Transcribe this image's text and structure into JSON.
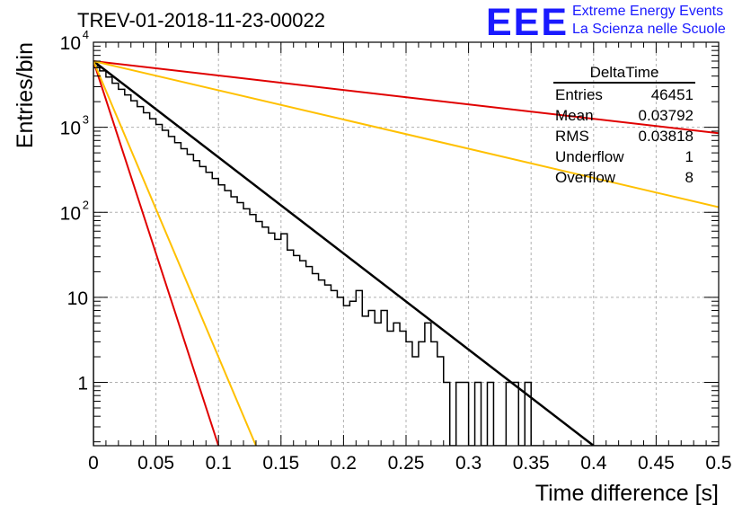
{
  "header": {
    "title": "TREV-01-2018-11-23-00022",
    "logo_text": "EEE",
    "logo_line1": "Extreme Energy Events",
    "logo_line2": "La Scienza nelle Scuole"
  },
  "stats_box": {
    "title": "DeltaTime",
    "rows": [
      {
        "label": "Entries",
        "value": "46451"
      },
      {
        "label": "Mean",
        "value": "0.03792"
      },
      {
        "label": "RMS",
        "value": "0.03818"
      },
      {
        "label": "Underflow",
        "value": "1"
      },
      {
        "label": "Overflow",
        "value": "8"
      }
    ]
  },
  "colors": {
    "histogram": "#000000",
    "fit": "#000000",
    "red_lines": "#e00000",
    "yellow_lines": "#ffc000",
    "grid": "#b0b0b0",
    "logo": "#1a1aff"
  },
  "chart_data": {
    "type": "line",
    "title": "TREV-01-2018-11-23-00022",
    "xlabel": "Time difference [s]",
    "ylabel": "Entries/bin",
    "xlim": [
      0,
      0.5
    ],
    "ylim": [
      0.18,
      10000
    ],
    "yscale": "log",
    "grid": true,
    "x_ticks": [
      "0",
      "0.05",
      "0.1",
      "0.15",
      "0.2",
      "0.25",
      "0.3",
      "0.35",
      "0.4",
      "0.45",
      "0.5"
    ],
    "y_ticks": [
      {
        "value": 1,
        "label": "1"
      },
      {
        "value": 10,
        "label": "10"
      },
      {
        "value": 100,
        "label": "10",
        "exp": "2"
      },
      {
        "value": 1000,
        "label": "10",
        "exp": "3"
      },
      {
        "value": 10000,
        "label": "10",
        "exp": "4"
      }
    ],
    "histogram": {
      "name": "DeltaTime",
      "bin_width": 0.005,
      "values": [
        5200,
        4600,
        3900,
        3300,
        2800,
        2400,
        2050,
        1750,
        1480,
        1260,
        1080,
        920,
        780,
        660,
        560,
        480,
        405,
        345,
        295,
        250,
        210,
        180,
        152,
        130,
        110,
        94,
        78,
        67,
        57,
        48,
        56,
        36,
        31,
        27,
        23,
        19,
        16,
        14,
        12,
        10,
        8,
        9,
        12,
        6,
        7,
        5,
        7,
        4,
        5,
        4,
        3,
        2,
        3,
        5,
        3,
        2,
        1,
        0,
        1,
        1,
        0,
        1,
        0,
        1,
        0,
        0,
        1,
        1,
        0,
        1,
        0,
        0,
        0,
        0,
        0,
        0,
        0,
        0,
        0,
        0,
        0,
        0,
        0,
        0,
        0,
        0,
        0,
        0,
        0,
        0,
        0,
        0,
        0,
        0,
        0,
        0,
        0,
        0,
        0,
        0
      ]
    },
    "series": [
      {
        "kind": "fit",
        "x": [
          0,
          0.4
        ],
        "y": [
          6000,
          0.18
        ]
      },
      {
        "kind": "red",
        "x": [
          0,
          0.5
        ],
        "y": [
          6000,
          850
        ]
      },
      {
        "kind": "red",
        "x": [
          0,
          0.1
        ],
        "y": [
          6000,
          0.18
        ]
      },
      {
        "kind": "yellow",
        "x": [
          0,
          0.5
        ],
        "y": [
          6000,
          115
        ]
      },
      {
        "kind": "yellow",
        "x": [
          0,
          0.13
        ],
        "y": [
          6000,
          0.18
        ]
      }
    ]
  }
}
